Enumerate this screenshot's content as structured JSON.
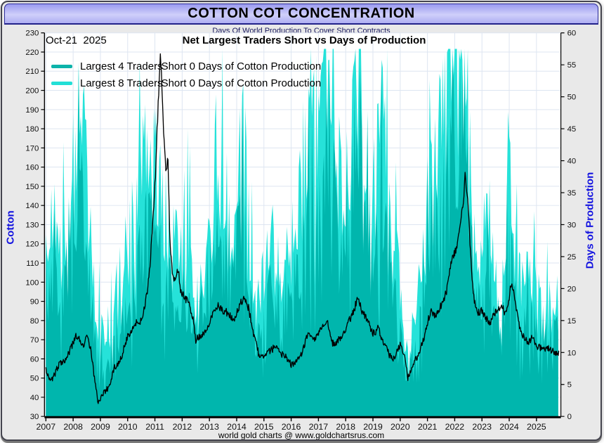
{
  "window": {
    "title": "COTTON COT CONCENTRATION",
    "subtitle": "Days Of World Production To Cover Short Contracts",
    "footer": "world gold charts @ www.goldchartsrus.com"
  },
  "chart": {
    "date_label": "Oct-21  2025",
    "title": "Net Largest Traders Short vs Days of Production",
    "left_axis": {
      "label": "Cotton",
      "min": 30,
      "max": 230,
      "step": 10,
      "title_color": "#1414e0"
    },
    "right_axis": {
      "label": "Days of Production",
      "min": 0,
      "max": 60,
      "step": 5,
      "title_color": "#1414e0"
    },
    "x_axis": {
      "start": 2007,
      "end": 2025,
      "data_end": 2025.83,
      "ticks": [
        2007,
        2008,
        2009,
        2010,
        2011,
        2012,
        2013,
        2014,
        2015,
        2016,
        2017,
        2018,
        2019,
        2020,
        2021,
        2022,
        2023,
        2024,
        2025
      ]
    },
    "colors": {
      "grid": "#dde5f1",
      "plot_bg": "#ffffff",
      "axis": "#000000",
      "tick_text": "#111111"
    }
  },
  "legend": [
    {
      "name": "Largest 4 Traders",
      "suffix": "Short 0 Days of Cotton Production",
      "color": "#0db3aa"
    },
    {
      "name": "Largest 8 Traders",
      "suffix": "Short 0 Days of Cotton Production",
      "color": "#22dfd6"
    }
  ],
  "chart_data": {
    "type": "combo",
    "title": "Net Largest Traders Short vs Days of Production",
    "series": [
      {
        "name": "Largest 4 Traders Short (days of cotton production)",
        "type": "area",
        "axis": "right",
        "color": "#00b6ad",
        "jitter": 0.65,
        "x_start": 2007,
        "x_step": 0.25,
        "values": [
          16,
          22,
          17,
          19,
          27,
          33,
          24,
          14,
          8,
          7,
          11,
          14,
          19,
          22,
          24,
          30,
          26,
          23,
          20,
          17,
          15,
          18,
          11,
          16,
          22,
          28,
          24,
          20,
          26,
          31,
          17,
          11,
          14,
          19,
          17,
          16,
          16,
          22,
          28,
          31,
          33,
          40,
          38,
          25,
          30,
          36,
          40,
          28,
          22,
          33,
          28,
          19,
          13,
          6,
          10,
          16,
          22,
          29,
          34,
          41,
          44,
          45,
          31,
          17,
          16,
          22,
          14,
          13,
          25,
          16,
          13,
          14,
          13,
          11,
          13,
          12
        ]
      },
      {
        "name": "Largest 8 Traders Short (days of cotton production)",
        "type": "area",
        "axis": "right",
        "color": "#26e2d9",
        "jitter": 0.65,
        "x_start": 2007,
        "x_step": 0.25,
        "values": [
          22,
          30,
          24,
          26,
          38,
          46,
          34,
          20,
          12,
          10,
          16,
          20,
          26,
          30,
          33,
          41,
          36,
          32,
          28,
          24,
          22,
          26,
          16,
          22,
          30,
          38,
          33,
          28,
          36,
          42,
          24,
          16,
          20,
          26,
          24,
          22,
          22,
          30,
          38,
          42,
          44,
          52,
          50,
          34,
          40,
          47,
          52,
          38,
          30,
          44,
          38,
          26,
          18,
          8,
          14,
          22,
          30,
          38,
          44,
          52,
          54,
          55,
          40,
          24,
          22,
          30,
          20,
          18,
          34,
          22,
          18,
          20,
          18,
          16,
          18,
          16
        ]
      },
      {
        "name": "Cotton price",
        "type": "line",
        "axis": "left",
        "color": "#000000",
        "jitter_abs": 4.2,
        "x": [
          2007.0,
          2007.17,
          2007.33,
          2007.5,
          2007.75,
          2008.0,
          2008.1,
          2008.25,
          2008.4,
          2008.5,
          2008.65,
          2008.8,
          2008.92,
          2009.1,
          2009.3,
          2009.5,
          2009.75,
          2010.0,
          2010.25,
          2010.5,
          2010.65,
          2010.8,
          2010.92,
          2011.0,
          2011.1,
          2011.2,
          2011.28,
          2011.35,
          2011.42,
          2011.48,
          2011.55,
          2011.65,
          2011.75,
          2011.85,
          2011.95,
          2012.1,
          2012.25,
          2012.4,
          2012.5,
          2012.65,
          2012.8,
          2012.95,
          2013.1,
          2013.3,
          2013.5,
          2013.7,
          2013.9,
          2014.1,
          2014.3,
          2014.45,
          2014.6,
          2014.8,
          2015.0,
          2015.2,
          2015.4,
          2015.6,
          2015.8,
          2016.0,
          2016.2,
          2016.4,
          2016.6,
          2016.8,
          2017.0,
          2017.2,
          2017.35,
          2017.5,
          2017.7,
          2017.9,
          2018.1,
          2018.3,
          2018.45,
          2018.6,
          2018.8,
          2019.0,
          2019.2,
          2019.4,
          2019.6,
          2019.8,
          2020.0,
          2020.15,
          2020.28,
          2020.45,
          2020.65,
          2020.85,
          2021.0,
          2021.15,
          2021.3,
          2021.5,
          2021.7,
          2021.85,
          2022.0,
          2022.15,
          2022.3,
          2022.38,
          2022.48,
          2022.58,
          2022.7,
          2022.85,
          2023.0,
          2023.15,
          2023.3,
          2023.5,
          2023.7,
          2023.85,
          2024.0,
          2024.08,
          2024.2,
          2024.35,
          2024.5,
          2024.7,
          2024.85,
          2025.0,
          2025.2,
          2025.4,
          2025.6,
          2025.83
        ],
        "values": [
          55,
          48,
          52,
          58,
          60,
          68,
          72,
          70,
          66,
          72,
          65,
          48,
          37,
          42,
          45,
          55,
          60,
          72,
          78,
          80,
          88,
          105,
          130,
          150,
          185,
          219,
          195,
          168,
          158,
          166,
          120,
          105,
          100,
          108,
          95,
          92,
          89,
          80,
          70,
          72,
          74,
          76,
          83,
          88,
          85,
          84,
          79,
          88,
          92,
          86,
          74,
          63,
          60,
          64,
          66,
          63,
          61,
          57,
          58,
          63,
          73,
          70,
          73,
          77,
          79,
          68,
          69,
          73,
          79,
          85,
          93,
          85,
          80,
          73,
          76,
          68,
          62,
          60,
          68,
          62,
          50,
          56,
          62,
          70,
          79,
          85,
          82,
          88,
          95,
          110,
          115,
          124,
          140,
          155,
          142,
          115,
          92,
          84,
          85,
          81,
          79,
          84,
          88,
          84,
          92,
          100,
          93,
          78,
          72,
          69,
          71,
          67,
          65,
          66,
          64,
          63
        ]
      }
    ]
  }
}
